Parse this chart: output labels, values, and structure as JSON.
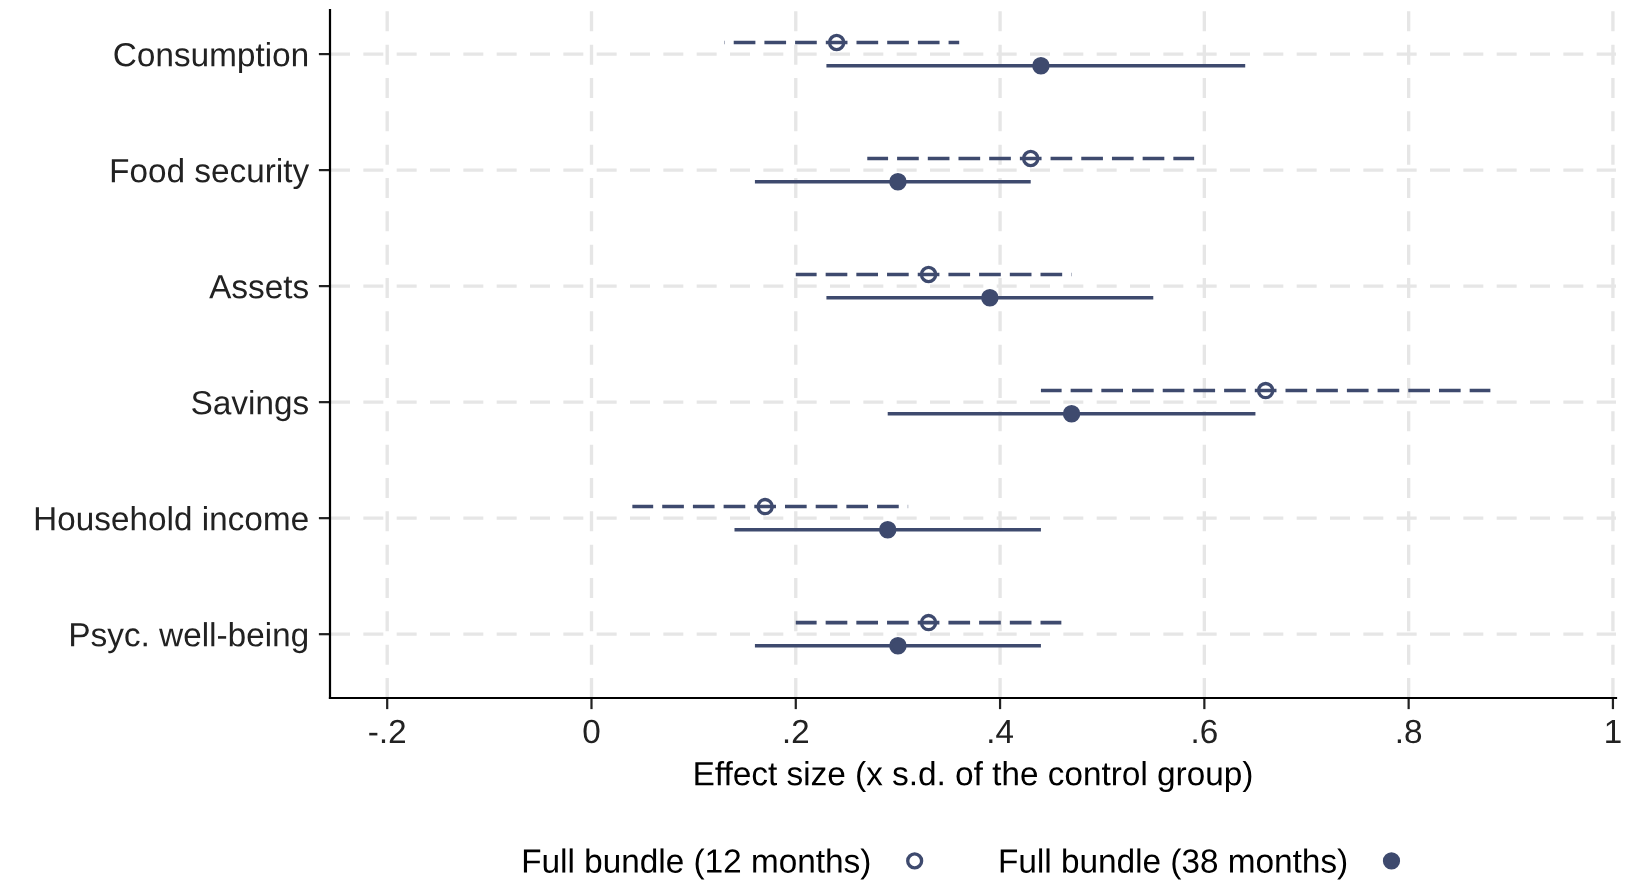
{
  "chart_data": {
    "type": "scatter",
    "orientation": "horizontal",
    "xlabel": "Effect size (x s.d. of the control group)",
    "categories": [
      "Consumption",
      "Food security",
      "Assets",
      "Savings",
      "Household income",
      "Psyc. well-being"
    ],
    "series": [
      {
        "name": "Full bundle (12 months)",
        "color": "#3e4a6e",
        "line_style": "dashed",
        "marker": "circle",
        "values": [
          0.24,
          0.43,
          0.33,
          0.66,
          0.17,
          0.33
        ],
        "errors": [
          [
            0.13,
            0.36
          ],
          [
            0.27,
            0.59
          ],
          [
            0.2,
            0.47
          ],
          [
            0.44,
            0.88
          ],
          [
            0.04,
            0.31
          ],
          [
            0.2,
            0.46
          ]
        ]
      },
      {
        "name": "Full bundle (38 months)",
        "color": "#3e4a6e",
        "line_style": "solid",
        "marker": "circle",
        "values": [
          0.44,
          0.3,
          0.39,
          0.47,
          0.29,
          0.3
        ],
        "errors": [
          [
            0.23,
            0.64
          ],
          [
            0.16,
            0.43
          ],
          [
            0.23,
            0.55
          ],
          [
            0.29,
            0.65
          ],
          [
            0.14,
            0.44
          ],
          [
            0.16,
            0.44
          ]
        ]
      }
    ],
    "xlim": [
      -0.256,
      1.003
    ],
    "xticks": [
      {
        "value": -0.2,
        "label": "-.2"
      },
      0,
      {
        "value": 0.2,
        "label": ".2"
      },
      {
        "value": 0.4,
        "label": ".4"
      },
      {
        "value": 0.6,
        "label": ".6"
      },
      {
        "value": 0.8,
        "label": ".8"
      },
      1
    ],
    "grid": true,
    "legend": "bottom"
  }
}
